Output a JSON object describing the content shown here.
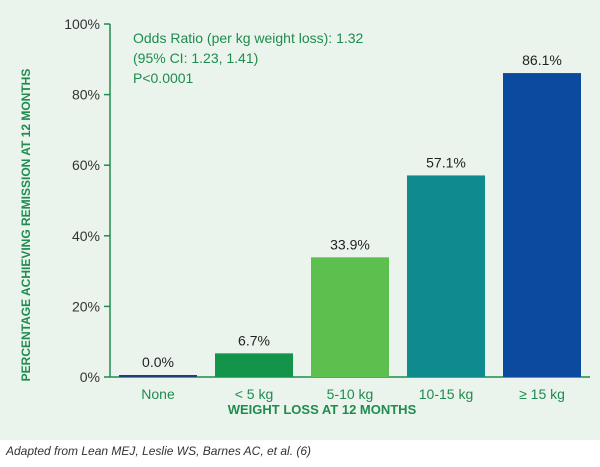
{
  "chart_data": {
    "type": "bar",
    "categories": [
      "None",
      "< 5 kg",
      "5-10 kg",
      "10-15 kg",
      "≥ 15 kg"
    ],
    "values": [
      0.0,
      6.7,
      33.9,
      57.1,
      86.1
    ],
    "data_labels": [
      "0.0%",
      "6.7%",
      "33.9%",
      "57.1%",
      "86.1%"
    ],
    "bar_colors": [
      "#1f3f7a",
      "#14934a",
      "#5cbf4e",
      "#0f8b8d",
      "#0b4a9e"
    ],
    "xlabel": "WEIGHT LOSS AT 12 MONTHS",
    "ylabel": "PERCENTAGE ACHIEVING REMISSION AT 12 MONTHS",
    "ylim": [
      0,
      100
    ],
    "yticks": [
      0,
      20,
      40,
      60,
      80,
      100
    ],
    "ytick_labels": [
      "0%",
      "20%",
      "40%",
      "60%",
      "80%",
      "100%"
    ],
    "annotation": [
      "Odds Ratio (per kg weight loss): 1.32",
      "(95% CI: 1.23, 1.41)",
      "P<0.0001"
    ],
    "grid": false,
    "axis_color": "#1e8c4e",
    "accent_text_color": "#1e8c4e"
  },
  "caption": "Adapted from Lean MEJ, Leslie WS, Barnes AC, et al. (6)"
}
